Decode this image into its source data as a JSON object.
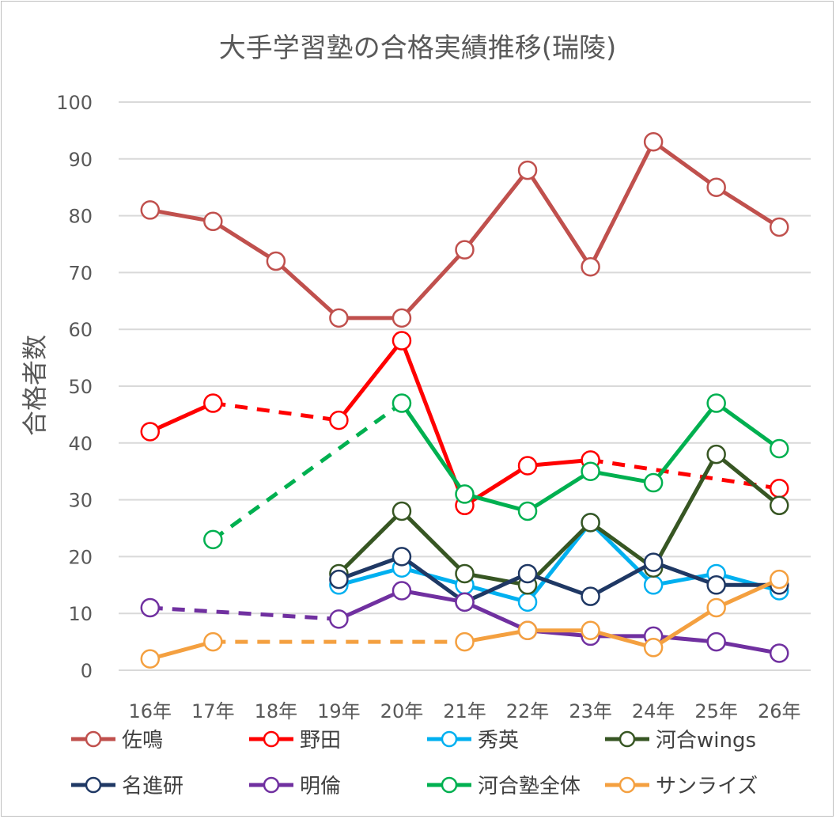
{
  "chart_data": {
    "type": "line",
    "title": "大手学習塾の合格実績推移(瑞陵)",
    "xlabel": "",
    "ylabel": "合格者数",
    "ylim": [
      0,
      100
    ],
    "yticks": [
      0,
      10,
      20,
      30,
      40,
      50,
      60,
      70,
      80,
      90,
      100
    ],
    "grid": true,
    "legend_position": "bottom",
    "categories": [
      "16年",
      "17年",
      "18年",
      "19年",
      "20年",
      "21年",
      "22年",
      "23年",
      "24年",
      "25年",
      "26年"
    ],
    "series": [
      {
        "name": "佐鳴",
        "color": "#c0504d",
        "values": [
          81,
          79,
          72,
          62,
          62,
          74,
          88,
          71,
          93,
          85,
          78
        ]
      },
      {
        "name": "野田",
        "color": "#ff0000",
        "values": [
          42,
          47,
          null,
          44,
          58,
          29,
          36,
          37,
          null,
          null,
          32
        ]
      },
      {
        "name": "秀英",
        "color": "#00b0f0",
        "values": [
          null,
          null,
          null,
          15,
          18,
          15,
          12,
          26,
          15,
          17,
          14
        ]
      },
      {
        "name": "河合wings",
        "color": "#375623",
        "values": [
          null,
          null,
          null,
          17,
          28,
          17,
          15,
          26,
          18,
          38,
          29
        ]
      },
      {
        "name": "名進研",
        "color": "#1f3864",
        "values": [
          null,
          null,
          null,
          16,
          20,
          12,
          17,
          13,
          19,
          15,
          15
        ]
      },
      {
        "name": "明倫",
        "color": "#7030a0",
        "values": [
          11,
          null,
          null,
          9,
          14,
          12,
          7,
          6,
          6,
          5,
          3
        ]
      },
      {
        "name": "河合塾全体",
        "color": "#00b050",
        "values": [
          null,
          23,
          null,
          null,
          47,
          31,
          28,
          35,
          33,
          47,
          39
        ]
      },
      {
        "name": "サンライズ",
        "color": "#f4a040",
        "values": [
          2,
          5,
          null,
          null,
          null,
          5,
          7,
          7,
          4,
          11,
          16
        ]
      }
    ]
  }
}
